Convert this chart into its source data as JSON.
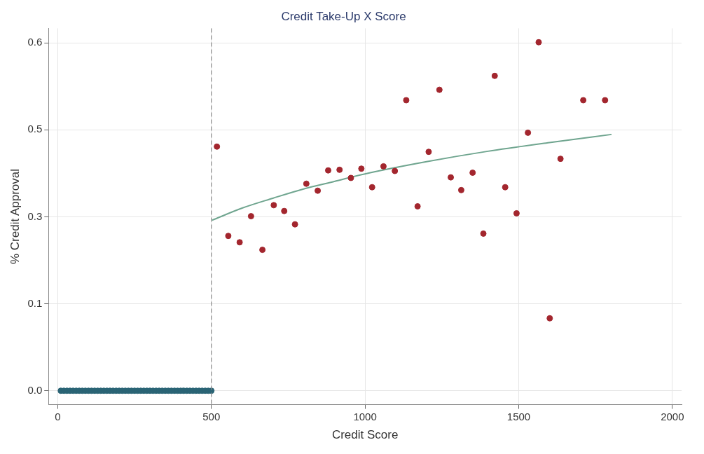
{
  "chart_data": {
    "type": "scatter",
    "title": "Credit Take-Up X Score",
    "xlabel": "Credit Score",
    "ylabel": "% Credit Approval",
    "xlim": [
      -30,
      2030
    ],
    "xticks": [
      0,
      500,
      1000,
      1500,
      2000
    ],
    "ylim": [
      -0.024,
      0.625
    ],
    "yticks": [
      {
        "value": 0,
        "label": "0.0"
      },
      {
        "value": 0.15,
        "label": "0.1"
      },
      {
        "value": 0.3,
        "label": "0.3"
      },
      {
        "value": 0.45,
        "label": "0.5"
      },
      {
        "value": 0.6,
        "label": "0.6"
      }
    ],
    "grid": true,
    "legend": false,
    "marker": "circle",
    "ref_lines": [
      {
        "axis": "x",
        "value": 500,
        "color": "#8a8a8a",
        "line_style": "dashed"
      }
    ],
    "series": [
      {
        "type": "scatter",
        "color": "#2a6475",
        "x": [
          10,
          20,
          30,
          40,
          50,
          60,
          70,
          80,
          90,
          100,
          110,
          120,
          130,
          140,
          150,
          160,
          170,
          180,
          190,
          200,
          210,
          220,
          230,
          240,
          250,
          260,
          270,
          280,
          290,
          300,
          310,
          320,
          330,
          340,
          350,
          360,
          370,
          380,
          390,
          400,
          410,
          420,
          430,
          440,
          450,
          460,
          470,
          480,
          490,
          500
        ],
        "values": [
          0,
          0,
          0,
          0,
          0,
          0,
          0,
          0,
          0,
          0,
          0,
          0,
          0,
          0,
          0,
          0,
          0,
          0,
          0,
          0,
          0,
          0,
          0,
          0,
          0,
          0,
          0,
          0,
          0,
          0,
          0,
          0,
          0,
          0,
          0,
          0,
          0,
          0,
          0,
          0,
          0,
          0,
          0,
          0,
          0,
          0,
          0,
          0,
          0,
          0
        ]
      },
      {
        "type": "scatter",
        "color": "#a3262e",
        "x": [
          518,
          555,
          592,
          629,
          666,
          703,
          737,
          772,
          809,
          846,
          880,
          917,
          954,
          988,
          1023,
          1060,
          1097,
          1134,
          1171,
          1207,
          1242,
          1279,
          1313,
          1350,
          1385,
          1422,
          1456,
          1493,
          1530,
          1565,
          1601,
          1636,
          1710,
          1781
        ],
        "values": [
          0.421,
          0.267,
          0.256,
          0.301,
          0.243,
          0.32,
          0.31,
          0.287,
          0.357,
          0.345,
          0.38,
          0.381,
          0.367,
          0.383,
          0.351,
          0.387,
          0.379,
          0.501,
          0.318,
          0.412,
          0.519,
          0.368,
          0.346,
          0.376,
          0.271,
          0.543,
          0.351,
          0.306,
          0.445,
          0.601,
          0.125,
          0.4,
          0.501,
          0.501
        ]
      },
      {
        "type": "line",
        "color": "#6fa58f",
        "marker": "none",
        "x": [
          502,
          600,
          700,
          800,
          900,
          1000,
          1200,
          1400,
          1600,
          1802
        ],
        "values": [
          0.294,
          0.315,
          0.332,
          0.348,
          0.361,
          0.374,
          0.395,
          0.413,
          0.428,
          0.442
        ]
      }
    ]
  }
}
